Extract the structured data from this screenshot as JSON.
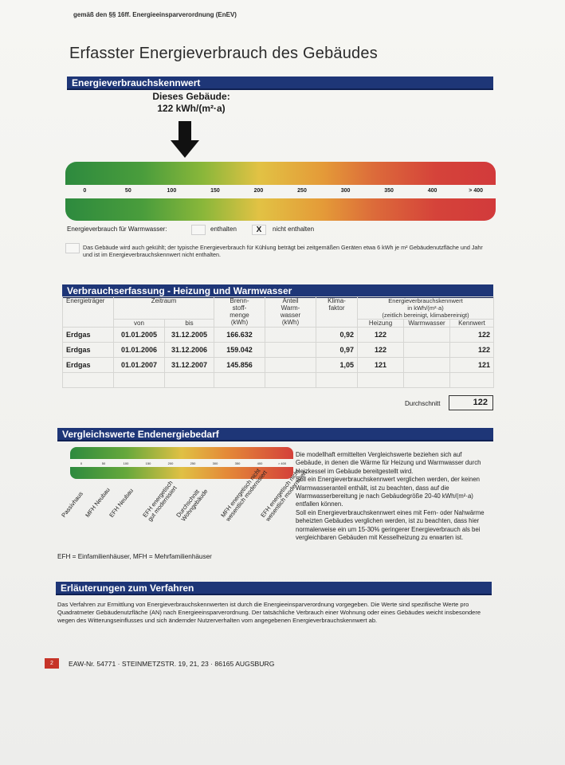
{
  "header": {
    "law_ref": "gemäß den §§ 16ff. Energieeinsparverordnung (EnEV)",
    "title": "Erfasster Energieverbrauch des Gebäudes"
  },
  "kennwert": {
    "section": "Energieverbrauchskennwert",
    "label": "Dieses Gebäude:",
    "value": "122 kWh/(m²·a)",
    "scale_ticks": [
      "0",
      "50",
      "100",
      "150",
      "200",
      "250",
      "300",
      "350",
      "400",
      "> 400"
    ],
    "marker_value": 122,
    "warmwasser_label": "Energieverbrauch für Warmwasser:",
    "enthalten": "enthalten",
    "x_mark": "X",
    "nicht_enthalten": "nicht enthalten",
    "note": "Das Gebäude wird auch gekühlt; der typische Energieverbrauch für Kühlung beträgt bei zeitgemäßen Geräten etwa 6 kWh je m² Gebäudenutzfläche und Jahr und ist im Energieverbrauchskennwert nicht enthalten."
  },
  "verbrauch": {
    "section": "Verbrauchserfassung - Heizung und Warmwasser",
    "headers": {
      "traeger": "Energieträger",
      "zeitraum": "Zeitraum",
      "von": "von",
      "bis": "bis",
      "brenn": "Brenn-\nstoff-\nmenge\n(kWh)",
      "anteil": "Anteil\nWarm-\nwasser\n(kWh)",
      "klima": "Klima-\nfaktor",
      "kennwert": "Energieverbrauchskennwert\nin kWh/(m²·a)\n(zeitlich bereinigt, klimabereinigt)",
      "heizung": "Heizung",
      "warmwasser": "Warmwasser",
      "kennwert_col": "Kennwert"
    },
    "rows": [
      {
        "traeger": "Erdgas",
        "von": "01.01.2005",
        "bis": "31.12.2005",
        "menge": "166.632",
        "anteil": "",
        "klima": "0,92",
        "heizung": "122",
        "ww": "",
        "kennwert": "122"
      },
      {
        "traeger": "Erdgas",
        "von": "01.01.2006",
        "bis": "31.12.2006",
        "menge": "159.042",
        "anteil": "",
        "klima": "0,97",
        "heizung": "122",
        "ww": "",
        "kennwert": "122"
      },
      {
        "traeger": "Erdgas",
        "von": "01.01.2007",
        "bis": "31.12.2007",
        "menge": "145.856",
        "anteil": "",
        "klima": "1,05",
        "heizung": "121",
        "ww": "",
        "kennwert": "121"
      }
    ],
    "avg_label": "Durchschnitt",
    "avg_value": "122"
  },
  "vergleich": {
    "section": "Vergleichswerte Endenergiebedarf",
    "mini_ticks": [
      "0",
      "50",
      "100",
      "150",
      "200",
      "250",
      "300",
      "350",
      "400",
      "> 400"
    ],
    "refs": [
      "Passivhaus",
      "MFH Neubau",
      "EFH Neubau",
      "EFH energetisch\ngut modernisiert",
      "Durchschnitt\nWohngebäude",
      "MFH energetisch nicht\nwesentlich modernisiert",
      "EFH energetisch nicht\nwesentlich modernisiert"
    ],
    "legend": "EFH = Einfamilienhäuser, MFH = Mehrfamilienhäuser",
    "side_text": "Die modellhaft ermittelten Vergleichswerte beziehen sich auf Gebäude, in denen die Wärme für Heizung und Warmwasser durch Heizkessel im Gebäude bereitgestellt wird.\nSoll ein Energieverbrauchskennwert verglichen werden, der keinen Warmwasseranteil enthält, ist zu beachten, dass auf die Warmwasserbereitung je nach Gebäudegröße 20-40 kWh/(m²·a) entfallen können.\nSoll ein Energieverbrauchskennwert eines mit Fern- oder Nahwärme beheizten Gebäudes verglichen werden, ist zu beachten, dass hier normalerweise ein um 15-30% geringerer Energieverbrauch als bei vergleichbaren Gebäuden mit Kesselheizung zu erwarten ist."
  },
  "erlaeuterung": {
    "section": "Erläuterungen zum Verfahren",
    "text": "Das Verfahren zur Ermittlung von Energieverbrauchskennwerten ist durch die Energieeinsparverordnung vorgegeben. Die Werte sind spezifische Werte pro Quadratmeter Gebäudenutzfläche (AN) nach Energieeinsparverordnung. Der tatsächliche Verbrauch einer Wohnung oder eines Gebäudes weicht insbesondere wegen des Witterungseinflusses und sich ändernder Nutzerverhalten vom angegebenen Energieverbrauchskennwert ab."
  },
  "footer": {
    "page": "2",
    "text": "EAW-Nr. 54771 · STEINMETZSTR. 19, 21, 23 · 86165 AUGSBURG"
  },
  "colors": {
    "section_bar": "#1e3677",
    "green": "#2d8a3e",
    "yellow": "#e2c244",
    "red": "#d23a3b"
  }
}
